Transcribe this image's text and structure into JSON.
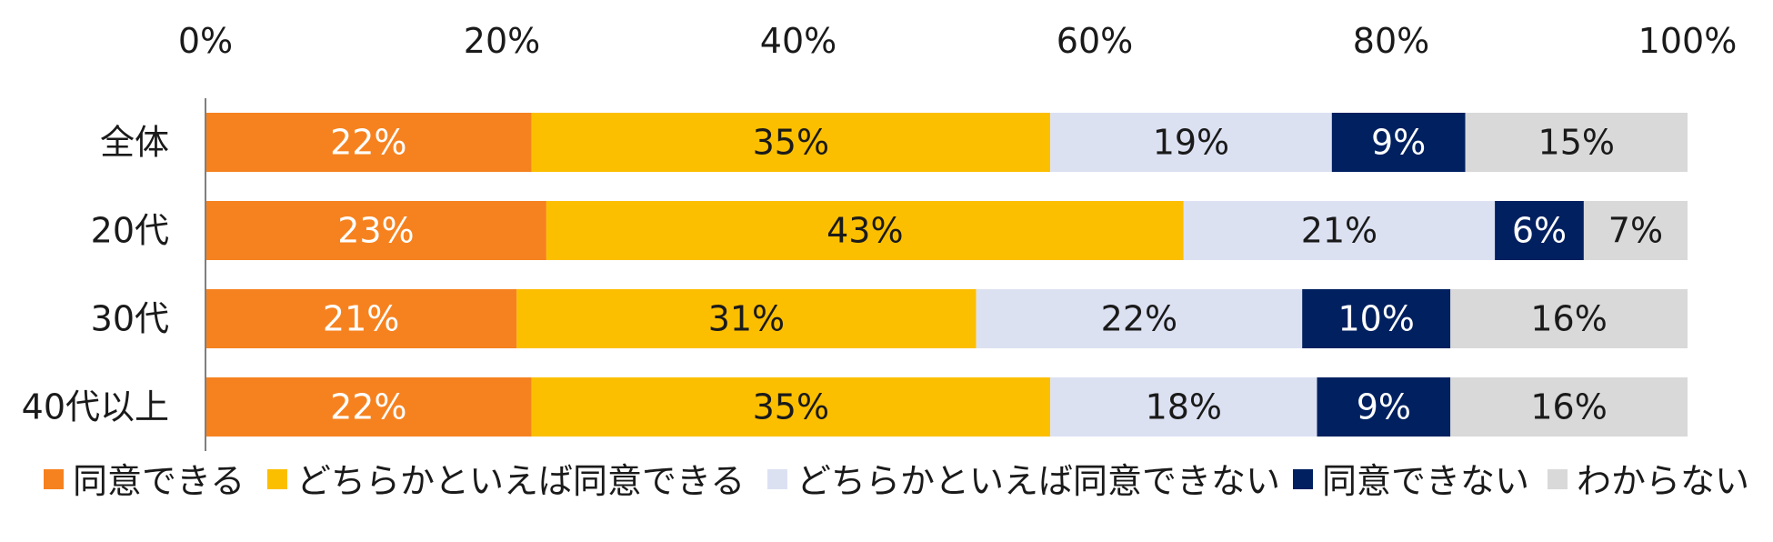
{
  "chart_data": {
    "type": "bar",
    "orientation": "horizontal",
    "stacked": "percent",
    "categories": [
      "全体",
      "20代",
      "30代",
      "40代以上"
    ],
    "series": [
      {
        "name": "同意できる",
        "color": "#F6821F",
        "values": [
          22,
          23,
          21,
          22
        ],
        "labels": [
          "22%",
          "23%",
          "21%",
          "22%"
        ]
      },
      {
        "name": "どちらかといえば同意できる",
        "color": "#FCBF00",
        "values": [
          35,
          43,
          31,
          35
        ],
        "labels": [
          "35%",
          "43%",
          "31%",
          "35%"
        ]
      },
      {
        "name": "どちらかといえば同意できない",
        "color": "#DCE1F2",
        "values": [
          19,
          21,
          22,
          18
        ],
        "labels": [
          "19%",
          "21%",
          "22%",
          "18%"
        ]
      },
      {
        "name": "同意できない",
        "color": "#002060",
        "values": [
          9,
          6,
          10,
          9
        ],
        "labels": [
          "9%",
          "6%",
          "10%",
          "9%"
        ]
      },
      {
        "name": "わからない",
        "color": "#D9D9D9",
        "values": [
          15,
          7,
          16,
          16
        ],
        "labels": [
          "15%",
          "7%",
          "16%",
          "16%"
        ]
      }
    ],
    "label_colors": [
      "#ffffff",
      "#1a1a1a",
      "#1a1a1a",
      "#ffffff",
      "#1a1a1a"
    ],
    "x_ticks": [
      "0%",
      "20%",
      "40%",
      "60%",
      "80%",
      "100%"
    ],
    "xlim": [
      0,
      100
    ],
    "axis_position": "top",
    "grid": false,
    "legend_position": "bottom"
  }
}
